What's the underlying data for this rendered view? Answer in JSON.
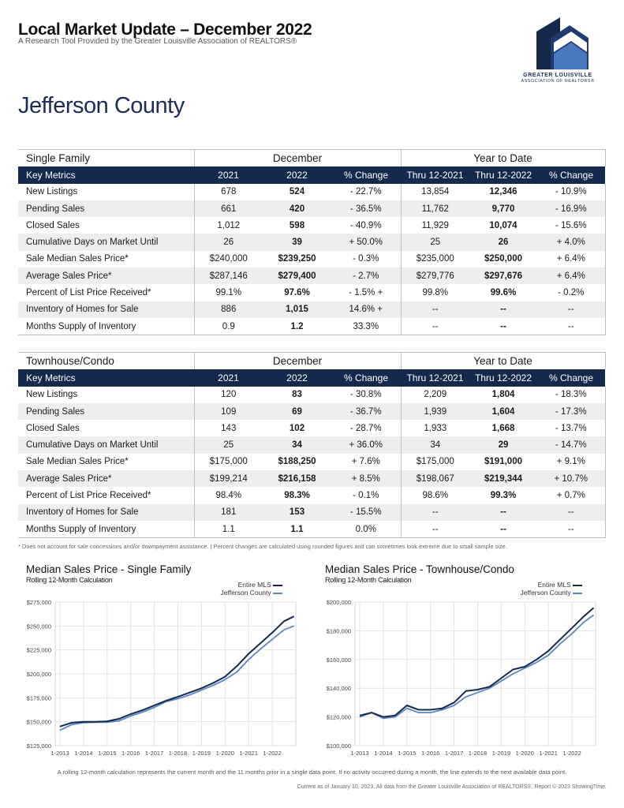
{
  "header": {
    "title": "Local Market Update – December 2022",
    "subtitle": "A Research Tool Provided by the Greater Louisville Association of REALTORS®",
    "logo_line1": "GREATER LOUISVILLE",
    "logo_line2": "ASSOCIATION OF REALTORS®",
    "county": "Jefferson County"
  },
  "colors": {
    "navy": "#15294d",
    "entire_mls": "#15294d",
    "county": "#5b86c4"
  },
  "tables": [
    {
      "section": "Single Family",
      "group_month": "December",
      "group_ytd": "Year to Date",
      "columns": [
        "Key Metrics",
        "2021",
        "2022",
        "% Change",
        "Thru 12-2021",
        "Thru 12-2022",
        "% Change"
      ],
      "rows": [
        [
          "New Listings",
          "678",
          "524",
          "- 22.7%",
          "13,854",
          "12,346",
          "- 10.9%"
        ],
        [
          "Pending Sales",
          "661",
          "420",
          "- 36.5%",
          "11,762",
          "9,770",
          "- 16.9%"
        ],
        [
          "Closed Sales",
          "1,012",
          "598",
          "- 40.9%",
          "11,929",
          "10,074",
          "- 15.6%"
        ],
        [
          "Cumulative Days on Market Until",
          "26",
          "39",
          "+ 50.0%",
          "25",
          "26",
          "+ 4.0%"
        ],
        [
          "Sale Median Sales Price*",
          "$240,000",
          "$239,250",
          "- 0.3%",
          "$235,000",
          "$250,000",
          "+ 6.4%"
        ],
        [
          "Average Sales Price*",
          "$287,146",
          "$279,400",
          "- 2.7%",
          "$279,776",
          "$297,676",
          "+ 6.4%"
        ],
        [
          "Percent of List Price Received*",
          "99.1%",
          "97.6%",
          "- 1.5% +",
          "99.8%",
          "99.6%",
          "- 0.2%"
        ],
        [
          "Inventory of Homes for Sale",
          "886",
          "1,015",
          "14.6% +",
          "--",
          "--",
          "--"
        ],
        [
          "Months Supply of Inventory",
          "0.9",
          "1.2",
          "33.3%",
          "--",
          "--",
          "--"
        ]
      ]
    },
    {
      "section": "Townhouse/Condo",
      "group_month": "December",
      "group_ytd": "Year to Date",
      "columns": [
        "Key Metrics",
        "2021",
        "2022",
        "% Change",
        "Thru 12-2021",
        "Thru 12-2022",
        "% Change"
      ],
      "rows": [
        [
          "New Listings",
          "120",
          "83",
          "- 30.8%",
          "2,209",
          "1,804",
          "- 18.3%"
        ],
        [
          "Pending Sales",
          "109",
          "69",
          "- 36.7%",
          "1,939",
          "1,604",
          "- 17.3%"
        ],
        [
          "Closed Sales",
          "143",
          "102",
          "- 28.7%",
          "1,933",
          "1,668",
          "- 13.7%"
        ],
        [
          "Cumulative Days on Market Until",
          "25",
          "34",
          "+ 36.0%",
          "34",
          "29",
          "- 14.7%"
        ],
        [
          "Sale Median Sales Price*",
          "$175,000",
          "$188,250",
          "+ 7.6%",
          "$175,000",
          "$191,000",
          "+ 9.1%"
        ],
        [
          "Average Sales Price*",
          "$199,214",
          "$216,158",
          "+ 8.5%",
          "$198,067",
          "$219,344",
          "+ 10.7%"
        ],
        [
          "Percent of List Price Received*",
          "98.4%",
          "98.3%",
          "- 0.1%",
          "98.6%",
          "99.3%",
          "+ 0.7%"
        ],
        [
          "Inventory of Homes for Sale",
          "181",
          "153",
          "- 15.5%",
          "--",
          "--",
          "--"
        ],
        [
          "Months Supply of Inventory",
          "1.1",
          "1.1",
          "0.0%",
          "--",
          "--",
          "--"
        ]
      ]
    }
  ],
  "footnote": "* Does not account for sale concessions and/or downpayment assistance.  |  Percent changes are calculated using rounded figures and can sometimes look extreme due to small sample size.",
  "chart_note": "A rolling 12-month calculation represents the current month and the 11 months prior in a single data point. If no activity occurred during a month, the line extends to the next available data point.",
  "chart_credit": "Current as of January 10, 2023. All data from the Greater Louisville Association of REALTORS®. Report © 2023 ShowingTime.",
  "chart_data": [
    {
      "type": "line",
      "title": "Median Sales Price - Single Family",
      "subtitle": "Rolling 12-Month Calculation",
      "x_labels": [
        "1-2013",
        "1-2014",
        "1-2015",
        "1-2016",
        "1-2017",
        "1-2018",
        "1-2019",
        "1-2020",
        "1-2021",
        "1-2022"
      ],
      "y_tick_labels": [
        "$125,000",
        "$150,000",
        "$175,000",
        "$200,000",
        "$225,000",
        "$250,000",
        "$275,000"
      ],
      "y_ticks": [
        125000,
        150000,
        175000,
        200000,
        225000,
        250000,
        275000
      ],
      "ylim": [
        125000,
        275000
      ],
      "grid": true,
      "legend_position": "top-right",
      "series": [
        {
          "name": "Entire MLS",
          "x": [
            2013.0,
            2013.5,
            2014.0,
            2014.5,
            2015.0,
            2015.5,
            2016.0,
            2016.5,
            2017.0,
            2017.5,
            2018.0,
            2018.5,
            2019.0,
            2019.5,
            2020.0,
            2020.5,
            2021.0,
            2021.5,
            2022.0,
            2022.5,
            2022.92
          ],
          "values": [
            145000,
            149000,
            150000,
            150000,
            150500,
            153000,
            158000,
            162000,
            167000,
            172000,
            176000,
            180500,
            185000,
            190500,
            197000,
            208000,
            221000,
            232000,
            243000,
            255000,
            260000
          ]
        },
        {
          "name": "Jefferson County",
          "x": [
            2013.0,
            2013.5,
            2014.0,
            2014.5,
            2015.0,
            2015.5,
            2016.0,
            2016.5,
            2017.0,
            2017.5,
            2018.0,
            2018.5,
            2019.0,
            2019.5,
            2020.0,
            2020.5,
            2021.0,
            2021.5,
            2022.0,
            2022.5,
            2022.92
          ],
          "values": [
            141000,
            147000,
            149000,
            149500,
            149500,
            151000,
            156000,
            160000,
            165000,
            171000,
            174000,
            178000,
            183000,
            188000,
            194000,
            202000,
            215000,
            226000,
            236000,
            246000,
            250000
          ]
        }
      ]
    },
    {
      "type": "line",
      "title": "Median Sales Price - Townhouse/Condo",
      "subtitle": "Rolling 12-Month Calculation",
      "x_labels": [
        "1-2013",
        "1-2014",
        "1-2015",
        "1-2016",
        "1-2017",
        "1-2018",
        "1-2019",
        "1-2020",
        "1-2021",
        "1-2022"
      ],
      "y_tick_labels": [
        "$100,000",
        "$120,000",
        "$140,000",
        "$160,000",
        "$180,000",
        "$200,000"
      ],
      "y_ticks": [
        100000,
        120000,
        140000,
        160000,
        180000,
        200000
      ],
      "ylim": [
        100000,
        200000
      ],
      "grid": true,
      "legend_position": "top-right",
      "series": [
        {
          "name": "Entire MLS",
          "x": [
            2013.0,
            2013.5,
            2014.0,
            2014.5,
            2015.0,
            2015.5,
            2016.0,
            2016.5,
            2017.0,
            2017.5,
            2018.0,
            2018.5,
            2019.0,
            2019.5,
            2020.0,
            2020.5,
            2021.0,
            2021.5,
            2022.0,
            2022.5,
            2022.92
          ],
          "values": [
            121000,
            123000,
            120000,
            121000,
            128000,
            125000,
            125000,
            126000,
            130000,
            138000,
            139000,
            141000,
            147000,
            153000,
            155000,
            160000,
            166000,
            174000,
            182000,
            190000,
            196000
          ]
        },
        {
          "name": "Jefferson County",
          "x": [
            2013.0,
            2013.5,
            2014.0,
            2014.5,
            2015.0,
            2015.5,
            2016.0,
            2016.5,
            2017.0,
            2017.5,
            2018.0,
            2018.5,
            2019.0,
            2019.5,
            2020.0,
            2020.5,
            2021.0,
            2021.5,
            2022.0,
            2022.5,
            2022.92
          ],
          "values": [
            120000,
            123000,
            119000,
            120000,
            126000,
            123000,
            123000,
            125000,
            128000,
            134000,
            137000,
            140000,
            145000,
            150000,
            154000,
            158000,
            163000,
            171000,
            178000,
            186000,
            191000
          ]
        }
      ]
    }
  ]
}
